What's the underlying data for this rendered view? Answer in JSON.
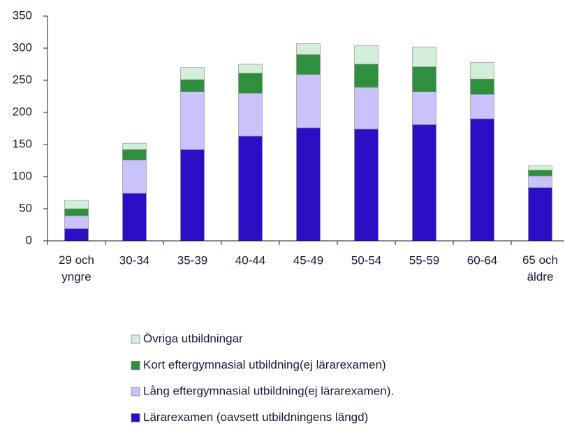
{
  "chart_data": {
    "type": "stacked_bar",
    "categories": [
      "29 och yngre",
      "30-34",
      "35-39",
      "40-44",
      "45-49",
      "50-54",
      "55-59",
      "60-64",
      "65 och äldre"
    ],
    "series": [
      {
        "name": "Lärarexamen (oavsett utbildningens längd)",
        "color": "#2a0fc4",
        "values": [
          19,
          74,
          142,
          163,
          176,
          174,
          181,
          190,
          83
        ]
      },
      {
        "name": "Lång eftergymnasial utbildning(ej lärarexamen).",
        "color": "#c9c2fb",
        "values": [
          20,
          52,
          90,
          67,
          83,
          65,
          51,
          38,
          18
        ]
      },
      {
        "name": "Kort eftergymnasial utbildning(ej lärarexamen)",
        "color": "#2f8f3f",
        "values": [
          11,
          16,
          19,
          31,
          31,
          36,
          39,
          24,
          9
        ]
      },
      {
        "name": "Övriga utbildningar",
        "color": "#d3efd9",
        "values": [
          13,
          10,
          19,
          14,
          17,
          29,
          31,
          26,
          7
        ]
      }
    ],
    "ylim": [
      0,
      350
    ],
    "yticks": [
      0,
      50,
      100,
      150,
      200,
      250,
      300,
      350
    ]
  }
}
